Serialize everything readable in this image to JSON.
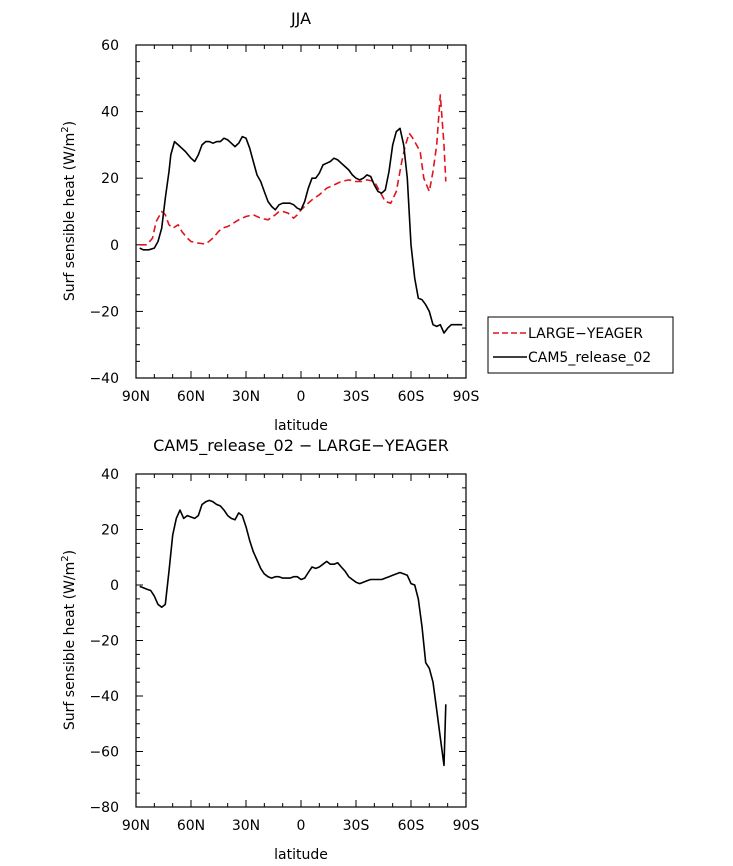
{
  "chart_data": [
    {
      "type": "line",
      "title": "JJA",
      "xlabel": "latitude",
      "ylabel": "Surf sensible heat (W/m²)",
      "ylabel_main": "Surf sensible heat (W/m",
      "ylabel_sup": "2",
      "ylabel_close": ")",
      "xlim": [
        -90,
        90
      ],
      "ylim": [
        -40,
        60
      ],
      "xticks": [
        -90,
        -60,
        -30,
        0,
        30,
        60,
        90
      ],
      "xtick_labels": [
        "90N",
        "60N",
        "30N",
        "0",
        "30S",
        "60S",
        "90S"
      ],
      "yticks": [
        -40,
        -20,
        0,
        20,
        40,
        60
      ],
      "ytick_labels": [
        "−40",
        "−20",
        "0",
        "20",
        "40",
        "60"
      ],
      "legend": {
        "position": "right",
        "entries": [
          {
            "label": "LARGE−YEAGER",
            "color": "#e0141e",
            "dash": "dashed"
          },
          {
            "label": "CAM5_release_02",
            "color": "#000000",
            "dash": "solid"
          }
        ]
      },
      "series": [
        {
          "name": "LARGE−YEAGER",
          "color": "#e0141e",
          "dash": "dashed",
          "x": [
            -88,
            -84,
            -81,
            -79,
            -76,
            -74,
            -72,
            -70,
            -67,
            -65,
            -62,
            -60,
            -56,
            -52,
            -48,
            -45,
            -43,
            -40,
            -37,
            -34,
            -30,
            -26,
            -22,
            -18,
            -14,
            -12,
            -10,
            -7,
            -4,
            -2,
            0,
            3,
            6,
            10,
            14,
            18,
            22,
            26,
            30,
            33,
            36,
            40,
            43,
            46,
            49,
            52,
            55,
            57,
            59,
            61,
            63,
            65,
            67,
            70,
            72,
            74,
            76,
            78,
            79
          ],
          "y": [
            0,
            0,
            2,
            7,
            10,
            9,
            6,
            5,
            6,
            4,
            2,
            1,
            0.5,
            0.2,
            2,
            4,
            5,
            5.5,
            6.5,
            7.5,
            8.5,
            9,
            8,
            7.5,
            9,
            10,
            10,
            9.5,
            8,
            9,
            10.5,
            12,
            13.5,
            15,
            17,
            18,
            19,
            19.5,
            19,
            19,
            19.5,
            19,
            16,
            13,
            12.5,
            16,
            25,
            30,
            33.5,
            32,
            30,
            28,
            20,
            16,
            22,
            30,
            45,
            30,
            19
          ]
        },
        {
          "name": "CAM5_release_02",
          "color": "#000000",
          "dash": "solid",
          "x": [
            -88,
            -86,
            -83,
            -80,
            -78,
            -76,
            -74,
            -72,
            -71,
            -69,
            -67,
            -65,
            -63,
            -60,
            -58,
            -56,
            -54,
            -52,
            -50,
            -48,
            -46,
            -44,
            -42,
            -40,
            -38,
            -36,
            -34,
            -32,
            -30,
            -28,
            -26,
            -24,
            -22,
            -20,
            -18,
            -16,
            -14,
            -12,
            -10,
            -8,
            -6,
            -4,
            -2,
            0,
            2,
            4,
            6,
            8,
            10,
            12,
            14,
            16,
            18,
            20,
            22,
            24,
            26,
            28,
            30,
            32,
            34,
            36,
            38,
            40,
            42,
            44,
            46,
            48,
            50,
            52,
            54,
            56,
            58,
            60,
            62,
            64,
            66,
            68,
            70,
            72,
            74,
            76,
            78,
            80,
            82,
            84,
            86,
            88
          ],
          "y": [
            -1,
            -1.5,
            -1.5,
            -1,
            1,
            5,
            14,
            22,
            27,
            31,
            30,
            29,
            28,
            26,
            25,
            27,
            30,
            31,
            31,
            30.5,
            31,
            31,
            32,
            31.5,
            30.5,
            29.5,
            30.5,
            32.5,
            32,
            29,
            25,
            21,
            19,
            16,
            13,
            11.5,
            10.5,
            12,
            12.5,
            12.5,
            12.5,
            12,
            11,
            10.5,
            13,
            17,
            20,
            20,
            21.5,
            24,
            24.5,
            25,
            26,
            25.5,
            24.5,
            23.5,
            22.5,
            21,
            20,
            19.5,
            20,
            21,
            20.5,
            18,
            16,
            15.5,
            16.5,
            22,
            30,
            34,
            35,
            30,
            20,
            0,
            -10,
            -16,
            -16.5,
            -18,
            -20,
            -24,
            -24.5,
            -24,
            -26.5,
            -25,
            -24,
            -24,
            -24,
            -24
          ]
        }
      ]
    },
    {
      "type": "line",
      "title": "CAM5_release_02 − LARGE−YEAGER",
      "xlabel": "latitude",
      "ylabel": "Surf sensible heat (W/m²)",
      "ylabel_main": "Surf sensible heat (W/m",
      "ylabel_sup": "2",
      "ylabel_close": ")",
      "xlim": [
        -90,
        90
      ],
      "ylim": [
        -80,
        40
      ],
      "xticks": [
        -90,
        -60,
        -30,
        0,
        30,
        60,
        90
      ],
      "xtick_labels": [
        "90N",
        "60N",
        "30N",
        "0",
        "30S",
        "60S",
        "90S"
      ],
      "yticks": [
        -80,
        -60,
        -40,
        -20,
        0,
        20,
        40
      ],
      "ytick_labels": [
        "−80",
        "−60",
        "−40",
        "−20",
        "0",
        "20",
        "40"
      ],
      "series": [
        {
          "name": "CAM5_release_02 − LARGE−YEAGER",
          "color": "#000000",
          "dash": "solid",
          "x": [
            -88,
            -86,
            -84,
            -82,
            -80,
            -78,
            -76,
            -74,
            -72,
            -70,
            -68,
            -66,
            -64,
            -62,
            -60,
            -58,
            -56,
            -54,
            -52,
            -50,
            -48,
            -46,
            -44,
            -42,
            -40,
            -38,
            -36,
            -34,
            -32,
            -30,
            -28,
            -26,
            -24,
            -22,
            -20,
            -18,
            -16,
            -14,
            -12,
            -10,
            -8,
            -6,
            -4,
            -2,
            0,
            2,
            4,
            6,
            8,
            10,
            12,
            14,
            16,
            18,
            20,
            22,
            24,
            26,
            28,
            30,
            32,
            34,
            36,
            38,
            40,
            42,
            44,
            46,
            48,
            50,
            52,
            54,
            56,
            58,
            60,
            62,
            64,
            66,
            68,
            70,
            72,
            74,
            76,
            78,
            79
          ],
          "y": [
            -0.5,
            -1,
            -1.5,
            -2,
            -4,
            -7,
            -8,
            -7,
            5,
            18,
            24,
            27,
            24,
            25,
            24.5,
            24,
            25,
            29,
            30,
            30.5,
            30,
            29,
            28.5,
            27,
            25,
            24,
            23.5,
            26,
            25,
            21,
            16,
            12,
            9,
            6,
            4,
            3,
            2.5,
            3,
            3,
            2.5,
            2.5,
            2.5,
            3,
            3,
            2,
            2.5,
            4.5,
            6.5,
            6,
            6.5,
            7.5,
            8.5,
            7.5,
            7.5,
            8,
            6.5,
            5,
            3,
            2,
            1,
            0.5,
            1,
            1.5,
            2,
            2,
            2,
            2,
            2.5,
            3,
            3.5,
            4,
            4.5,
            4,
            3.5,
            0.5,
            0,
            -5,
            -15,
            -28,
            -30,
            -35,
            -45,
            -55,
            -65,
            -43
          ]
        }
      ]
    }
  ]
}
